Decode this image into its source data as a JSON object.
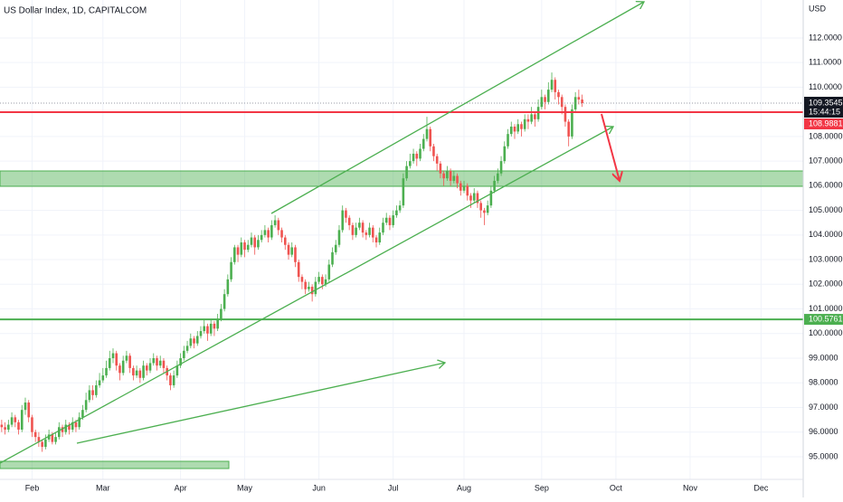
{
  "chart_data": {
    "type": "candlestick",
    "title": "US Dollar Index, 1D, CAPITALCOM",
    "currency": "USD",
    "countdown": "15:44:15",
    "up_color": "#4caf50",
    "down_color": "#ef5350",
    "grid": true,
    "xlim": [
      -0.5,
      237.5
    ],
    "xticks": [
      {
        "value": 9,
        "label": "Feb"
      },
      {
        "value": 30,
        "label": "Mar"
      },
      {
        "value": 53,
        "label": "Apr"
      },
      {
        "value": 72,
        "label": "May"
      },
      {
        "value": 94,
        "label": "Jun"
      },
      {
        "value": 116,
        "label": "Jul"
      },
      {
        "value": 137,
        "label": "Aug"
      },
      {
        "value": 160,
        "label": "Sep"
      },
      {
        "value": 182,
        "label": "Oct"
      },
      {
        "value": 204,
        "label": "Nov"
      },
      {
        "value": 225,
        "label": "Dec"
      }
    ],
    "ylim": [
      94.08,
      113.54
    ],
    "yticks": [
      {
        "value": 95,
        "label": "95.0000"
      },
      {
        "value": 96,
        "label": "96.0000"
      },
      {
        "value": 97,
        "label": "97.0000"
      },
      {
        "value": 98,
        "label": "98.0000"
      },
      {
        "value": 99,
        "label": "99.0000"
      },
      {
        "value": 100,
        "label": "100.0000"
      },
      {
        "value": 101,
        "label": "101.0000"
      },
      {
        "value": 102,
        "label": "102.0000"
      },
      {
        "value": 103,
        "label": "103.0000"
      },
      {
        "value": 104,
        "label": "104.0000"
      },
      {
        "value": 105,
        "label": "105.0000"
      },
      {
        "value": 106,
        "label": "106.0000"
      },
      {
        "value": 107,
        "label": "107.0000"
      },
      {
        "value": 108,
        "label": "108.0000"
      },
      {
        "value": 109,
        "label": "109.0000"
      },
      {
        "value": 110,
        "label": "110.0000"
      },
      {
        "value": 111,
        "label": "111.0000"
      },
      {
        "value": 112,
        "label": "112.0000"
      }
    ],
    "levels": [
      {
        "value": 108.9881,
        "color": "#f23645"
      },
      {
        "value": 100.5761,
        "color": "#4caf50"
      }
    ],
    "ohlc": [
      [
        96.3,
        96.5,
        96.0,
        96.2
      ],
      [
        96.2,
        96.4,
        95.9,
        96.1
      ],
      [
        96.1,
        96.5,
        96.0,
        96.3
      ],
      [
        96.3,
        96.8,
        96.2,
        96.6
      ],
      [
        96.6,
        96.7,
        96.2,
        96.4
      ],
      [
        96.4,
        96.5,
        95.9,
        96.1
      ],
      [
        96.1,
        97.1,
        96.0,
        96.9
      ],
      [
        96.9,
        97.4,
        96.7,
        97.2
      ],
      [
        97.2,
        97.3,
        96.4,
        96.6
      ],
      [
        96.6,
        96.7,
        95.8,
        96.0
      ],
      [
        96.0,
        96.1,
        95.6,
        95.8
      ],
      [
        95.8,
        96.0,
        95.4,
        95.6
      ],
      [
        95.6,
        95.7,
        95.2,
        95.4
      ],
      [
        95.4,
        95.9,
        95.3,
        95.7
      ],
      [
        95.7,
        96.1,
        95.6,
        95.9
      ],
      [
        95.9,
        96.0,
        95.5,
        95.6
      ],
      [
        95.6,
        96.0,
        95.5,
        95.8
      ],
      [
        95.8,
        96.4,
        95.7,
        96.2
      ],
      [
        96.2,
        96.3,
        95.8,
        96.0
      ],
      [
        96.0,
        96.5,
        95.9,
        96.3
      ],
      [
        96.3,
        96.4,
        95.9,
        96.1
      ],
      [
        96.1,
        96.6,
        96.0,
        96.4
      ],
      [
        96.4,
        96.5,
        96.0,
        96.2
      ],
      [
        96.2,
        96.8,
        96.1,
        96.6
      ],
      [
        96.6,
        97.1,
        96.5,
        96.9
      ],
      [
        96.9,
        97.6,
        96.8,
        97.3
      ],
      [
        97.3,
        97.9,
        97.2,
        97.7
      ],
      [
        97.7,
        97.9,
        97.3,
        97.5
      ],
      [
        97.5,
        98.1,
        97.4,
        97.9
      ],
      [
        97.9,
        98.4,
        97.8,
        98.1
      ],
      [
        98.1,
        98.6,
        98.0,
        98.3
      ],
      [
        98.3,
        98.9,
        98.2,
        98.6
      ],
      [
        98.6,
        99.3,
        98.5,
        99.0
      ],
      [
        99.0,
        99.4,
        98.8,
        99.2
      ],
      [
        99.2,
        99.3,
        98.5,
        98.7
      ],
      [
        98.7,
        98.8,
        98.1,
        98.4
      ],
      [
        98.4,
        99.1,
        98.3,
        98.9
      ],
      [
        98.9,
        99.3,
        98.8,
        99.1
      ],
      [
        99.1,
        99.2,
        98.4,
        98.6
      ],
      [
        98.6,
        98.7,
        98.1,
        98.3
      ],
      [
        98.3,
        98.7,
        98.2,
        98.5
      ],
      [
        98.5,
        98.6,
        98.0,
        98.2
      ],
      [
        98.2,
        98.9,
        98.1,
        98.7
      ],
      [
        98.7,
        98.8,
        98.3,
        98.5
      ],
      [
        98.5,
        99.0,
        98.4,
        98.8
      ],
      [
        98.8,
        99.2,
        98.7,
        99.0
      ],
      [
        99.0,
        99.1,
        98.5,
        98.7
      ],
      [
        98.7,
        99.1,
        98.6,
        98.9
      ],
      [
        98.9,
        99.0,
        98.4,
        98.6
      ],
      [
        98.6,
        98.7,
        98.1,
        98.3
      ],
      [
        98.3,
        98.4,
        97.7,
        97.9
      ],
      [
        97.9,
        98.5,
        97.8,
        98.3
      ],
      [
        98.3,
        98.9,
        98.2,
        98.7
      ],
      [
        98.7,
        99.2,
        98.6,
        99.0
      ],
      [
        99.0,
        99.5,
        98.9,
        99.3
      ],
      [
        99.3,
        99.7,
        99.2,
        99.5
      ],
      [
        99.5,
        100.0,
        99.4,
        99.8
      ],
      [
        99.8,
        99.9,
        99.4,
        99.6
      ],
      [
        99.6,
        100.1,
        99.5,
        99.9
      ],
      [
        99.9,
        100.3,
        99.8,
        100.1
      ],
      [
        100.1,
        100.6,
        100.0,
        100.3
      ],
      [
        100.3,
        100.4,
        99.7,
        100.0
      ],
      [
        100.0,
        100.6,
        99.9,
        100.4
      ],
      [
        100.4,
        100.5,
        99.9,
        100.2
      ],
      [
        100.2,
        100.8,
        100.1,
        100.6
      ],
      [
        100.6,
        101.2,
        100.5,
        101.0
      ],
      [
        101.0,
        101.8,
        100.9,
        101.6
      ],
      [
        101.6,
        102.4,
        101.5,
        102.2
      ],
      [
        102.2,
        103.1,
        102.1,
        102.9
      ],
      [
        102.9,
        103.6,
        102.8,
        103.5
      ],
      [
        103.5,
        103.6,
        102.9,
        103.2
      ],
      [
        103.2,
        103.9,
        103.1,
        103.7
      ],
      [
        103.7,
        103.8,
        103.1,
        103.4
      ],
      [
        103.4,
        103.8,
        103.3,
        103.6
      ],
      [
        103.6,
        104.1,
        103.5,
        103.9
      ],
      [
        103.9,
        104.0,
        103.2,
        103.5
      ],
      [
        103.5,
        104.0,
        103.4,
        103.8
      ],
      [
        103.8,
        104.2,
        103.7,
        104.0
      ],
      [
        104.0,
        104.4,
        103.9,
        104.2
      ],
      [
        104.2,
        104.3,
        103.7,
        103.9
      ],
      [
        103.9,
        104.6,
        103.8,
        104.4
      ],
      [
        104.4,
        104.8,
        104.3,
        104.6
      ],
      [
        104.6,
        104.7,
        104.0,
        104.2
      ],
      [
        104.2,
        104.3,
        103.7,
        103.9
      ],
      [
        103.9,
        104.0,
        103.4,
        103.6
      ],
      [
        103.6,
        103.7,
        103.0,
        103.2
      ],
      [
        103.2,
        103.7,
        103.1,
        103.5
      ],
      [
        103.5,
        103.6,
        102.7,
        102.9
      ],
      [
        102.9,
        103.0,
        102.1,
        102.3
      ],
      [
        102.3,
        102.4,
        101.8,
        102.1
      ],
      [
        102.1,
        102.2,
        101.6,
        101.8
      ],
      [
        101.8,
        102.1,
        101.7,
        101.9
      ],
      [
        101.9,
        102.0,
        101.3,
        101.6
      ],
      [
        101.6,
        102.3,
        101.5,
        102.1
      ],
      [
        102.1,
        102.5,
        102.0,
        102.3
      ],
      [
        102.3,
        102.4,
        101.8,
        102.0
      ],
      [
        102.0,
        102.4,
        101.9,
        102.2
      ],
      [
        102.2,
        103.0,
        102.1,
        102.8
      ],
      [
        102.8,
        103.5,
        102.7,
        103.3
      ],
      [
        103.3,
        103.8,
        103.2,
        103.6
      ],
      [
        103.6,
        104.4,
        103.5,
        104.2
      ],
      [
        104.2,
        105.2,
        104.1,
        105.0
      ],
      [
        105.0,
        105.1,
        104.5,
        104.7
      ],
      [
        104.7,
        104.8,
        104.2,
        104.4
      ],
      [
        104.4,
        104.5,
        103.8,
        104.0
      ],
      [
        104.0,
        104.5,
        103.9,
        104.3
      ],
      [
        104.3,
        104.7,
        104.2,
        104.5
      ],
      [
        104.5,
        104.6,
        103.9,
        104.1
      ],
      [
        104.1,
        104.2,
        103.8,
        104.0
      ],
      [
        104.0,
        104.5,
        103.9,
        104.3
      ],
      [
        104.3,
        104.4,
        103.7,
        103.9
      ],
      [
        103.9,
        104.0,
        103.5,
        103.7
      ],
      [
        103.7,
        104.3,
        103.6,
        104.1
      ],
      [
        104.1,
        104.7,
        104.0,
        104.5
      ],
      [
        104.5,
        104.9,
        104.4,
        104.7
      ],
      [
        104.7,
        104.8,
        104.2,
        104.4
      ],
      [
        104.4,
        105.0,
        104.3,
        104.8
      ],
      [
        104.8,
        105.2,
        104.7,
        105.0
      ],
      [
        105.0,
        105.4,
        104.9,
        105.2
      ],
      [
        105.2,
        106.5,
        105.1,
        106.3
      ],
      [
        106.3,
        107.0,
        106.2,
        106.8
      ],
      [
        106.8,
        107.3,
        106.7,
        107.0
      ],
      [
        107.0,
        107.5,
        106.9,
        107.3
      ],
      [
        107.3,
        107.4,
        106.8,
        107.1
      ],
      [
        107.1,
        107.7,
        107.0,
        107.5
      ],
      [
        107.5,
        108.1,
        107.4,
        107.9
      ],
      [
        107.9,
        108.8,
        107.8,
        108.3
      ],
      [
        108.3,
        108.4,
        107.4,
        107.6
      ],
      [
        107.6,
        107.7,
        107.0,
        107.2
      ],
      [
        107.2,
        107.3,
        106.6,
        106.9
      ],
      [
        106.9,
        107.0,
        106.3,
        106.5
      ],
      [
        106.5,
        106.6,
        106.0,
        106.3
      ],
      [
        106.3,
        106.8,
        106.2,
        106.6
      ],
      [
        106.6,
        106.7,
        106.0,
        106.2
      ],
      [
        106.2,
        106.6,
        106.1,
        106.4
      ],
      [
        106.4,
        106.5,
        105.9,
        106.1
      ],
      [
        106.1,
        106.2,
        105.6,
        105.8
      ],
      [
        105.8,
        106.2,
        105.7,
        106.0
      ],
      [
        106.0,
        106.1,
        105.4,
        105.6
      ],
      [
        105.6,
        105.7,
        105.1,
        105.4
      ],
      [
        105.4,
        105.9,
        105.3,
        105.7
      ],
      [
        105.7,
        105.8,
        105.1,
        105.3
      ],
      [
        105.3,
        105.4,
        104.7,
        105.0
      ],
      [
        105.0,
        105.1,
        104.4,
        104.9
      ],
      [
        104.9,
        105.4,
        104.8,
        105.2
      ],
      [
        105.2,
        106.0,
        105.1,
        105.8
      ],
      [
        105.8,
        106.4,
        105.7,
        106.2
      ],
      [
        106.2,
        106.7,
        106.1,
        106.5
      ],
      [
        106.5,
        107.2,
        106.4,
        107.0
      ],
      [
        107.0,
        107.8,
        106.9,
        107.6
      ],
      [
        107.6,
        108.3,
        107.5,
        108.1
      ],
      [
        108.1,
        108.6,
        108.0,
        108.4
      ],
      [
        108.4,
        108.5,
        107.9,
        108.2
      ],
      [
        108.2,
        108.7,
        108.1,
        108.5
      ],
      [
        108.5,
        108.6,
        108.0,
        108.3
      ],
      [
        108.3,
        108.9,
        108.2,
        108.7
      ],
      [
        108.7,
        108.9,
        108.3,
        108.6
      ],
      [
        108.6,
        109.2,
        108.5,
        108.9
      ],
      [
        108.9,
        109.0,
        108.4,
        108.7
      ],
      [
        108.7,
        109.5,
        108.6,
        109.2
      ],
      [
        109.2,
        109.9,
        109.1,
        109.6
      ],
      [
        109.6,
        109.7,
        109.1,
        109.4
      ],
      [
        109.4,
        110.2,
        109.3,
        109.9
      ],
      [
        109.9,
        110.6,
        109.8,
        110.3
      ],
      [
        110.3,
        110.4,
        109.5,
        109.8
      ],
      [
        109.8,
        109.9,
        109.3,
        109.6
      ],
      [
        109.6,
        109.7,
        108.9,
        109.2
      ],
      [
        109.2,
        109.3,
        108.4,
        108.6
      ],
      [
        108.6,
        108.7,
        107.6,
        108.0
      ],
      [
        108.0,
        109.3,
        107.9,
        109.1
      ],
      [
        109.1,
        109.8,
        109.0,
        109.6
      ],
      [
        109.6,
        109.9,
        109.3,
        109.5
      ],
      [
        109.5,
        109.7,
        109.2,
        109.3545
      ]
    ]
  }
}
